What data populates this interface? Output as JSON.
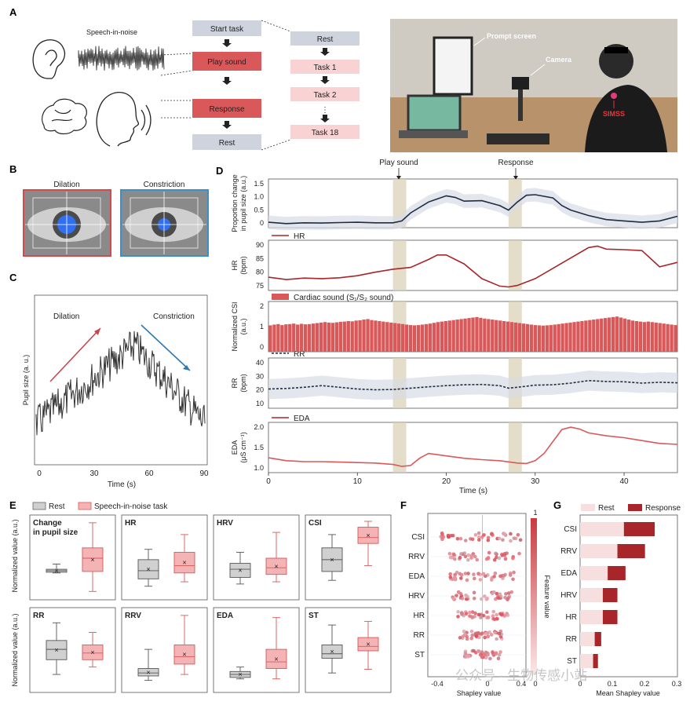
{
  "panels": {
    "A": "A",
    "B": "B",
    "C": "C",
    "D": "D",
    "E": "E",
    "F": "F",
    "G": "G"
  },
  "panel_a": {
    "speech_label": "Speech-in-noise",
    "flow": [
      "Start task",
      "Play sound",
      "Response",
      "Rest"
    ],
    "tasks": [
      "Rest",
      "Task 1",
      "Task 2",
      "⋮",
      "Task 18"
    ],
    "photo_labels": {
      "prompt": "Prompt screen",
      "camera": "Camera",
      "device": "SIMSS"
    }
  },
  "panel_b": {
    "dilation": "Dilation",
    "constriction": "Constriction"
  },
  "panel_c": {
    "dilation": "Dilation",
    "constriction": "Constriction",
    "ylabel": "Pupil size (a. u.)",
    "xlabel": "Time (s)",
    "xticks": [
      "0",
      "30",
      "60",
      "90"
    ]
  },
  "panel_d": {
    "markers": {
      "play": "Play sound",
      "response": "Response"
    },
    "xlabel": "Time (s)",
    "xticks": [
      "0",
      "10",
      "20",
      "30",
      "40"
    ],
    "subplots": [
      {
        "ylabel1": "Proportion change",
        "ylabel2": "in pupil size (a.u.)",
        "yticks": [
          "1.5",
          "1.0",
          "0.5",
          "0"
        ],
        "legend": ""
      },
      {
        "ylabel1": "HR",
        "ylabel2": "(bpm)",
        "yticks": [
          "90",
          "85",
          "80",
          "75"
        ],
        "legend": "HR"
      },
      {
        "ylabel1": "Normalized CSI",
        "ylabel2": "(a.u.)",
        "yticks": [
          "2",
          "1",
          "0"
        ],
        "legend": "Cardiac sound (S₁/S₂ sound)"
      },
      {
        "ylabel1": "RR",
        "ylabel2": "(bpm)",
        "yticks": [
          "40",
          "30",
          "20",
          "10"
        ],
        "legend": "RR"
      },
      {
        "ylabel1": "EDA",
        "ylabel2": "(μS cm⁻¹)",
        "yticks": [
          "2.0",
          "1.5",
          "1.0"
        ],
        "legend": "EDA"
      }
    ]
  },
  "chart_data": [
    {
      "type": "line",
      "panel": "D-pupil",
      "x": [
        0,
        2,
        4,
        6,
        8,
        10,
        12,
        14,
        15,
        16,
        18,
        20,
        21,
        22,
        24,
        26,
        27,
        28,
        29,
        30,
        32,
        33,
        34,
        36,
        38,
        40,
        42,
        44,
        46
      ],
      "y": [
        0.0,
        -0.05,
        -0.02,
        -0.03,
        -0.01,
        0.0,
        -0.02,
        -0.02,
        0.05,
        0.35,
        0.75,
        0.98,
        0.92,
        0.78,
        0.8,
        0.62,
        0.45,
        0.75,
        1.0,
        1.02,
        0.9,
        0.62,
        0.45,
        0.25,
        0.1,
        0.05,
        0.0,
        0.05,
        0.22
      ],
      "ylim": [
        -0.2,
        1.6
      ],
      "xlim": [
        0,
        46
      ]
    },
    {
      "type": "line",
      "panel": "D-HR",
      "x": [
        0,
        2,
        4,
        6,
        8,
        10,
        12,
        14,
        16,
        18,
        19,
        20,
        22,
        24,
        26,
        27,
        28,
        30,
        32,
        34,
        36,
        37,
        38,
        40,
        42,
        44,
        46
      ],
      "y": [
        79.5,
        78.7,
        79.2,
        79.0,
        79.3,
        80.0,
        81.2,
        82.2,
        82.8,
        85.5,
        87.0,
        87.0,
        84.0,
        79.0,
        76.5,
        76.2,
        76.7,
        79.0,
        82.5,
        86.0,
        89.5,
        90.0,
        89.0,
        88.8,
        88.5,
        83.0,
        84.5
      ],
      "ylim": [
        75,
        92
      ],
      "xlim": [
        0,
        46
      ]
    },
    {
      "type": "bar",
      "panel": "D-CSI",
      "x_range": [
        0,
        46
      ],
      "values": [
        1.05,
        1.08,
        1.1,
        1.06,
        1.09,
        1.1,
        1.12,
        1.08,
        1.11,
        1.09,
        1.1,
        1.12,
        1.14,
        1.16,
        1.18,
        1.16,
        1.15,
        1.17,
        1.19,
        1.2,
        1.22,
        1.21,
        1.24,
        1.25,
        1.28,
        1.3,
        1.26,
        1.24,
        1.22,
        1.2,
        1.18,
        1.16,
        1.14,
        1.12,
        1.1,
        1.08,
        1.06,
        1.05,
        1.06,
        1.08,
        1.1,
        1.12,
        1.15,
        1.18,
        1.2,
        1.22,
        1.24,
        1.26,
        1.28,
        1.3,
        1.32,
        1.34,
        1.36,
        1.38,
        1.35,
        1.32,
        1.3,
        1.28,
        1.26,
        1.24,
        1.22,
        1.2,
        1.18,
        1.16,
        1.14,
        1.12,
        1.1,
        1.08,
        1.06,
        1.05,
        1.04,
        1.05,
        1.06,
        1.08,
        1.1,
        1.12,
        1.14,
        1.16,
        1.18,
        1.2,
        1.22,
        1.24,
        1.26,
        1.28,
        1.3,
        1.32,
        1.34,
        1.36,
        1.38,
        1.4,
        1.36,
        1.32,
        1.28,
        1.24,
        1.22,
        1.2,
        1.18,
        1.2,
        1.18,
        1.16,
        1.14,
        1.12,
        1.1,
        1.08,
        1.06
      ],
      "ylim": [
        0,
        2
      ],
      "series": [
        {
          "name": "Cardiac sound (S₁/S₂ sound)"
        }
      ]
    },
    {
      "type": "line",
      "panel": "D-RR",
      "x": [
        0,
        2,
        4,
        6,
        8,
        10,
        12,
        14,
        16,
        18,
        20,
        22,
        24,
        26,
        27,
        28,
        30,
        32,
        34,
        36,
        38,
        40,
        42,
        44,
        46
      ],
      "y": [
        21.5,
        21.8,
        22.5,
        23.5,
        22.5,
        21.5,
        21.0,
        21.2,
        22.0,
        22.8,
        23.5,
        24.0,
        24.2,
        23.5,
        22.0,
        22.5,
        23.8,
        24.0,
        25.0,
        26.5,
        26.0,
        25.8,
        25.0,
        25.5,
        25.2
      ],
      "ylim": [
        10,
        40
      ],
      "xlim": [
        0,
        46
      ]
    },
    {
      "type": "line",
      "panel": "D-EDA",
      "x": [
        0,
        2,
        4,
        6,
        8,
        10,
        12,
        14,
        15,
        16,
        17,
        18,
        20,
        22,
        24,
        26,
        28,
        29,
        30,
        31,
        32,
        33,
        34,
        35,
        36,
        38,
        40,
        42,
        44,
        46
      ],
      "y": [
        1.26,
        1.2,
        1.18,
        1.18,
        1.17,
        1.16,
        1.15,
        1.12,
        1.08,
        1.1,
        1.25,
        1.35,
        1.3,
        1.25,
        1.22,
        1.2,
        1.15,
        1.14,
        1.2,
        1.35,
        1.6,
        1.85,
        1.9,
        1.86,
        1.78,
        1.72,
        1.68,
        1.62,
        1.56,
        1.54
      ],
      "ylim": [
        0.95,
        2.0
      ],
      "xlim": [
        0,
        46
      ]
    },
    {
      "type": "box",
      "panel": "E",
      "series": [
        {
          "name": "Rest"
        },
        {
          "name": "Speech-in-noise task"
        }
      ],
      "groups": [
        {
          "label": "Change in pupil size",
          "rest": [
            0.3,
            0.31,
            0.33,
            0.35,
            0.42
          ],
          "task": [
            0.05,
            0.32,
            0.5,
            0.64,
            0.98
          ]
        },
        {
          "label": "HR",
          "rest": [
            0.12,
            0.22,
            0.33,
            0.48,
            0.62
          ],
          "task": [
            0.18,
            0.3,
            0.4,
            0.58,
            0.82
          ]
        },
        {
          "label": "HRV",
          "rest": [
            0.15,
            0.24,
            0.35,
            0.43,
            0.58
          ],
          "task": [
            0.18,
            0.28,
            0.37,
            0.5,
            0.85
          ]
        },
        {
          "label": "CSI",
          "rest": [
            0.2,
            0.32,
            0.48,
            0.64,
            0.82
          ],
          "task": [
            0.4,
            0.7,
            0.78,
            0.92,
            1.0
          ]
        },
        {
          "label": "RR",
          "rest": [
            0.18,
            0.38,
            0.52,
            0.64,
            0.88
          ],
          "task": [
            0.28,
            0.38,
            0.47,
            0.58,
            0.75
          ]
        },
        {
          "label": "RRV",
          "rest": [
            0.1,
            0.16,
            0.2,
            0.26,
            0.52
          ],
          "task": [
            0.18,
            0.32,
            0.42,
            0.58,
            0.98
          ]
        },
        {
          "label": "EDA",
          "rest": [
            0.12,
            0.14,
            0.18,
            0.22,
            0.28
          ],
          "task": [
            0.12,
            0.26,
            0.35,
            0.52,
            0.95
          ]
        },
        {
          "label": "ST",
          "rest": [
            0.2,
            0.4,
            0.46,
            0.58,
            0.85
          ],
          "task": [
            0.25,
            0.5,
            0.56,
            0.68,
            0.9
          ]
        }
      ]
    },
    {
      "type": "scatter",
      "panel": "F",
      "categories": [
        "CSI",
        "RRV",
        "EDA",
        "HRV",
        "HR",
        "RR",
        "ST"
      ],
      "xlim": [
        -0.5,
        0.4
      ],
      "xlabel": "Shapley value"
    },
    {
      "type": "bar",
      "panel": "G",
      "categories": [
        "CSI",
        "RRV",
        "EDA",
        "HRV",
        "HR",
        "RR",
        "ST"
      ],
      "series": [
        {
          "name": "Rest",
          "values": [
            0.135,
            0.115,
            0.085,
            0.07,
            0.07,
            0.045,
            0.04
          ]
        },
        {
          "name": "Response",
          "values": [
            0.095,
            0.085,
            0.055,
            0.045,
            0.045,
            0.02,
            0.015
          ]
        }
      ],
      "xlim": [
        0,
        0.3
      ],
      "xlabel": "Mean Shapley value"
    }
  ],
  "panel_e": {
    "legend_rest": "Rest",
    "legend_task": "Speech-in-noise task",
    "ylabel": "Normalized value (a.u.)",
    "titles": [
      "Change",
      "HR",
      "HRV",
      "CSI",
      "RR",
      "RRV",
      "EDA",
      "ST"
    ],
    "title_line2": "in pupil size"
  },
  "panel_f": {
    "xlabel": "Shapley value",
    "xticks": [
      "-0.4",
      "0",
      "0.4"
    ],
    "colorbar_label": "Feature value",
    "colorbar_top": "1",
    "colorbar_bottom": "0"
  },
  "panel_g": {
    "legend_rest": "Rest",
    "legend_response": "Response",
    "xlabel": "Mean Shapley value",
    "xticks": [
      "0",
      "0.1",
      "0.2",
      "0.3"
    ]
  },
  "watermark": "公众号 · 生物传感小站",
  "colors": {
    "red": "#d9595a",
    "dark_red": "#a8262a",
    "task_fill": "#f4b3b5",
    "grey_box": "#d0d0d0",
    "band": "#d9d2b8",
    "navy": "#1f2d44"
  }
}
